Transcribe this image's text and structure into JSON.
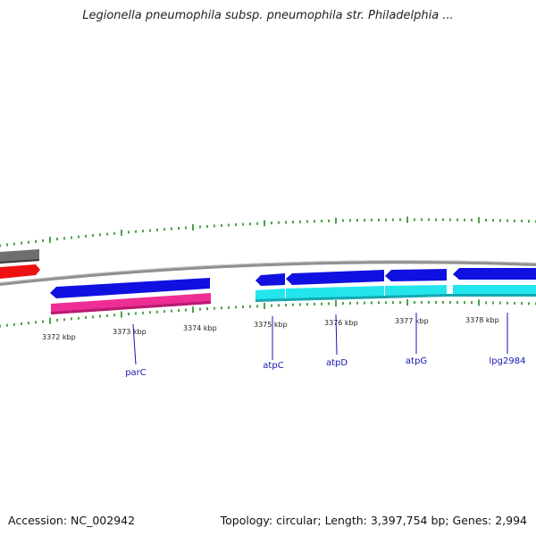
{
  "title": "Legionella pneumophila subsp. pneumophila str. Philadelphia ...",
  "footer": {
    "accession": "Accession: NC_002942",
    "stats": "Topology: circular; Length: 3,397,754 bp; Genes: 2,994"
  },
  "colors": {
    "backbone": "#8a8a8a",
    "tick": "#1e8a1e",
    "gene_blue": "#1010e0",
    "cds_magenta": "#ee2d95",
    "cds_cyan": "#22e6ec",
    "gene_gray": "#777777",
    "gene_red": "#ee1111"
  },
  "kbp_labels": [
    "3372 kbp",
    "3373 kbp",
    "3374 kbp",
    "3375 kbp",
    "3376 kbp",
    "3377 kbp",
    "3378 kbp"
  ],
  "gene_labels": [
    "parC",
    "atpC",
    "atpD",
    "atpG",
    "lpg2984"
  ]
}
